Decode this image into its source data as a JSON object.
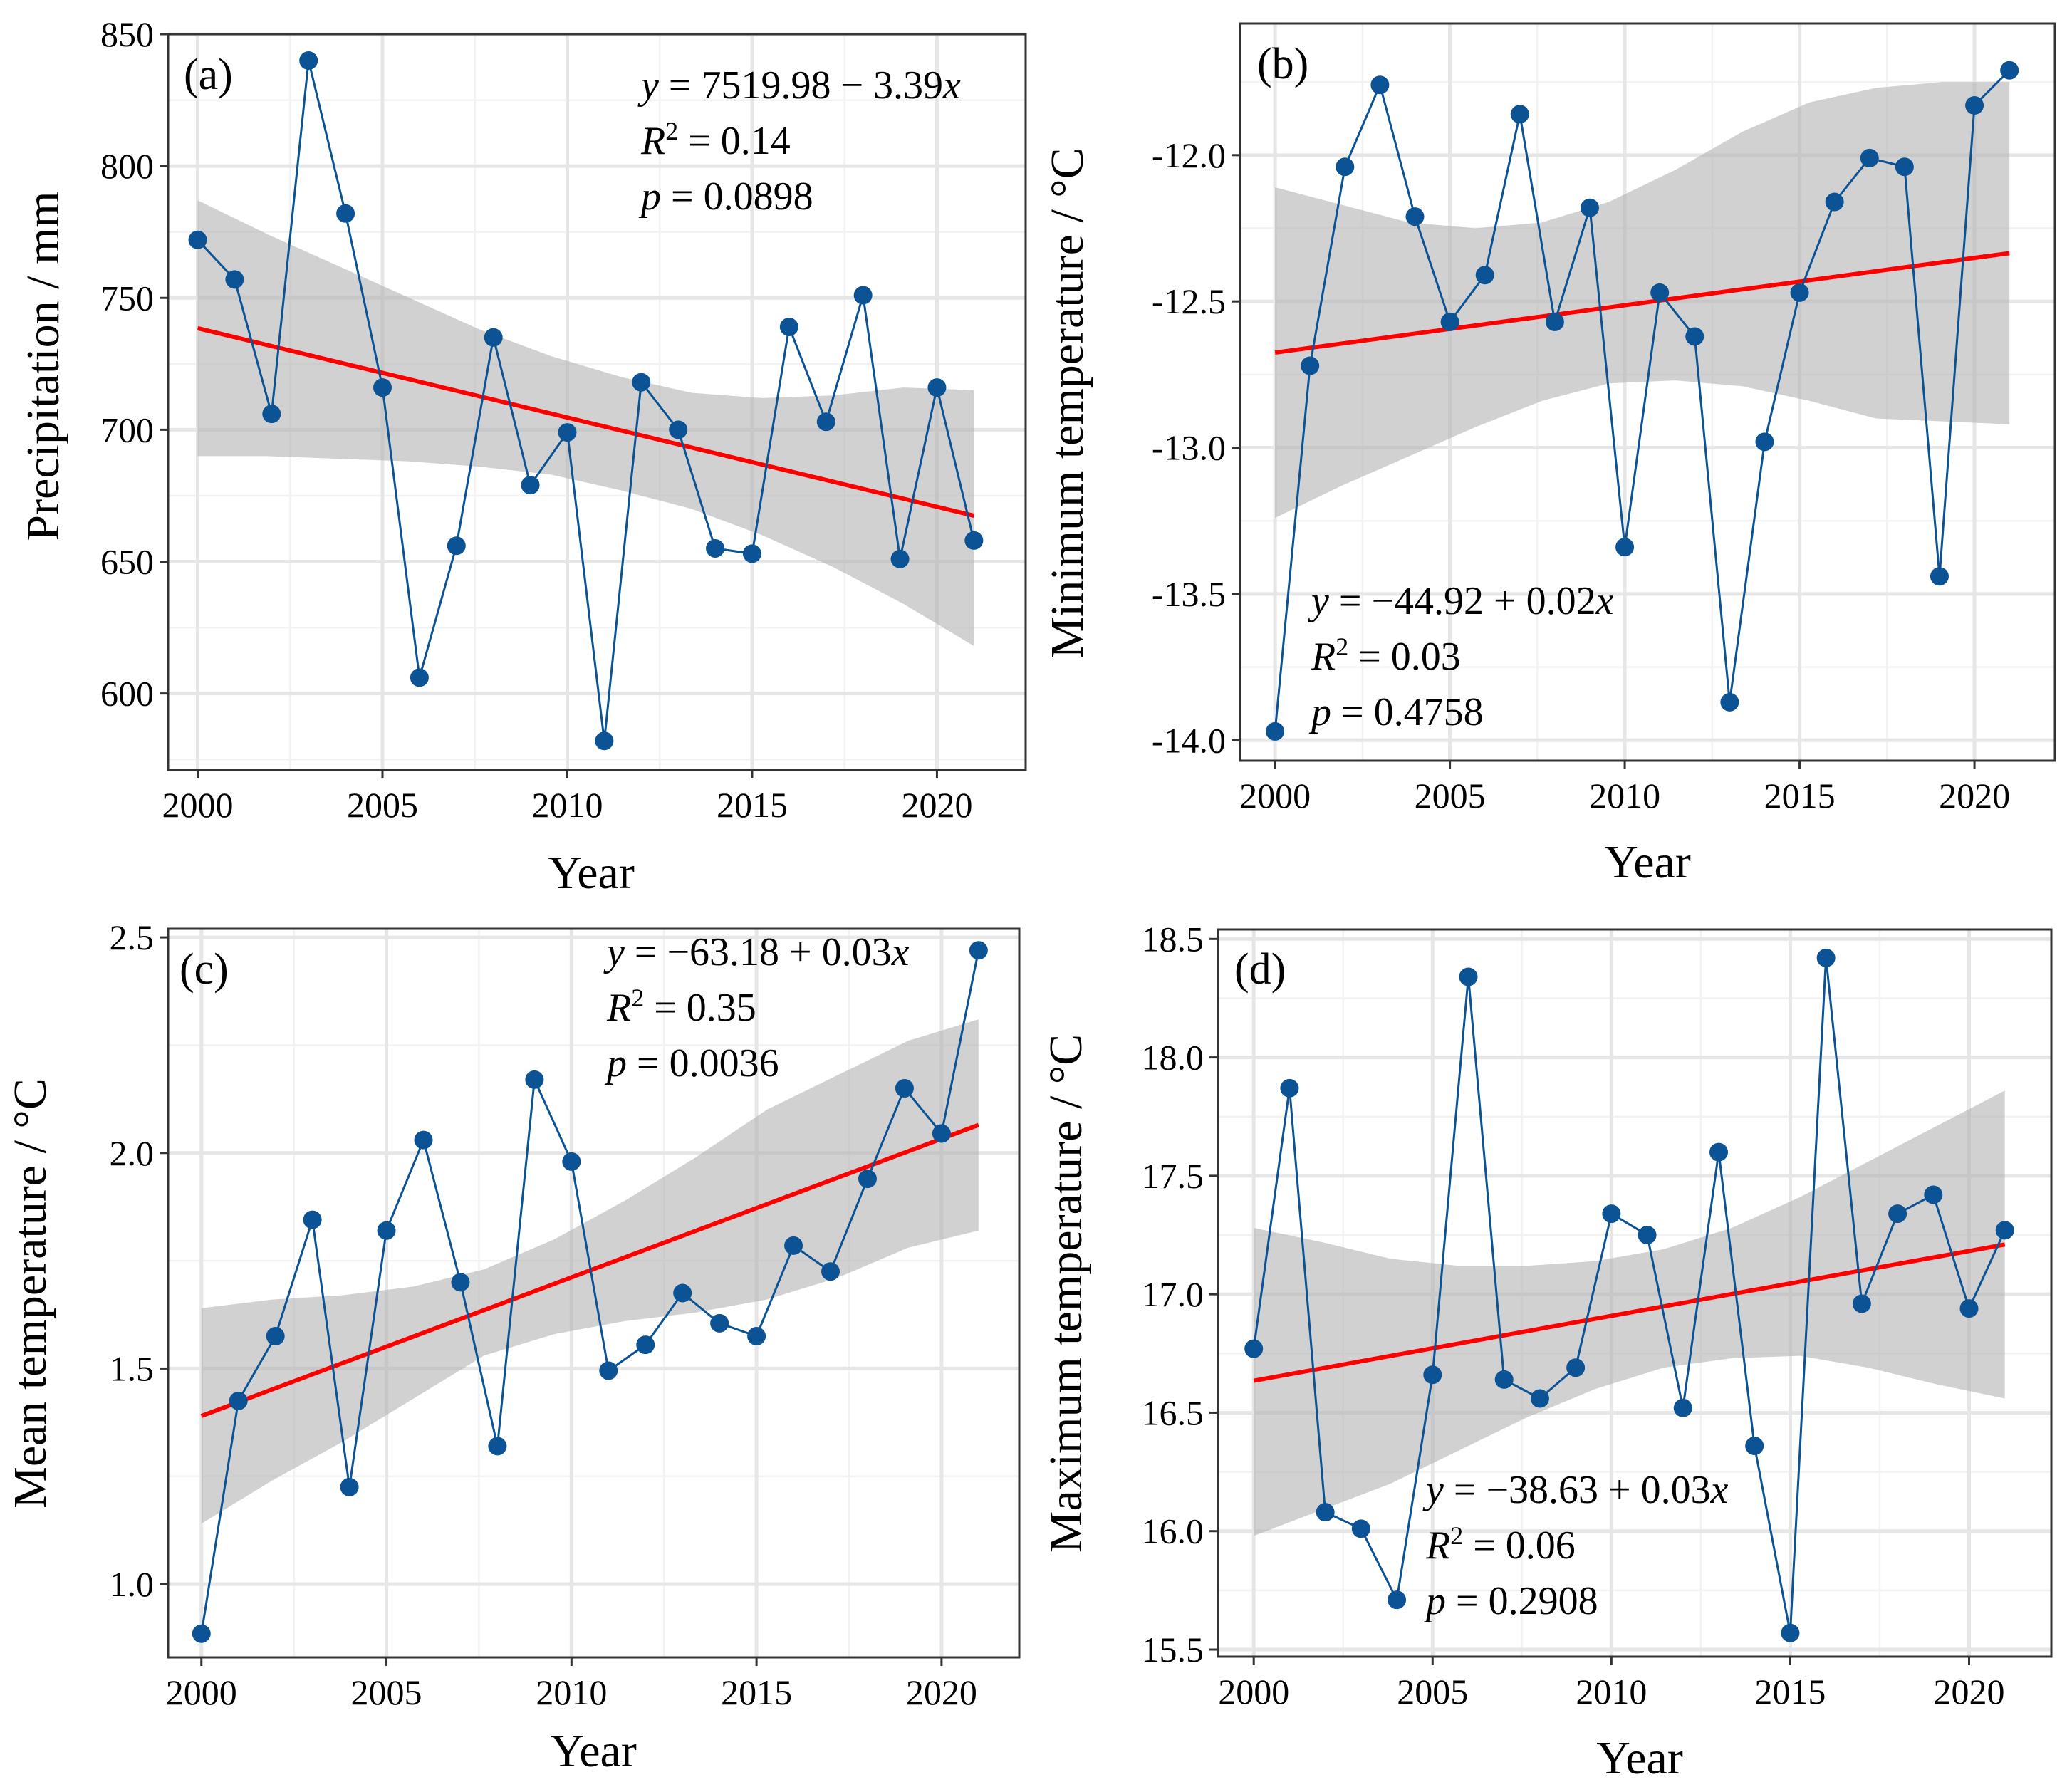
{
  "figure": {
    "colors": {
      "points": "#0b5394",
      "line": "#0b5394",
      "fit": "#ff0000",
      "band": "#b3b3b3"
    }
  },
  "chart_data": [
    {
      "id": "a",
      "type": "scatter",
      "panel_label": "(a)",
      "xlabel": "Year",
      "ylabel": "Precipitation / mm",
      "x": [
        2000,
        2001,
        2002,
        2003,
        2004,
        2005,
        2006,
        2007,
        2008,
        2009,
        2010,
        2011,
        2012,
        2013,
        2014,
        2015,
        2016,
        2017,
        2018,
        2019,
        2020,
        2021
      ],
      "y": [
        772,
        757,
        706,
        840,
        782,
        716,
        606,
        656,
        735,
        679,
        699,
        582,
        718,
        700,
        655,
        653,
        739,
        703,
        751,
        651,
        716,
        658
      ],
      "xlim": [
        1999.2,
        2022.4
      ],
      "ylim": [
        571,
        850
      ],
      "xticks": [
        2000,
        2005,
        2010,
        2015,
        2020
      ],
      "yticks": [
        600,
        650,
        700,
        750,
        800,
        850
      ],
      "ytick_labels": [
        "600",
        "650",
        "700",
        "750",
        "800",
        "850"
      ],
      "fit": {
        "intercept": 7519.98,
        "slope": -3.39,
        "x0": 2000,
        "y0": 738.5,
        "y1": 667.4
      },
      "band_upper": [
        787,
        774,
        762,
        750,
        738,
        728,
        720,
        714,
        712,
        713,
        716,
        715
      ],
      "band_lower": [
        690,
        690,
        689,
        688,
        686,
        683,
        677,
        670,
        660,
        648,
        634,
        618
      ],
      "equation": {
        "line1_y": "y",
        "line1_rest": " = 7519.98 − 3.39",
        "line1_x": "x",
        "line2_r": "R",
        "line2_sup": "2",
        "line2_rest": " = 0.14",
        "line3_p": "p",
        "line3_rest": " = 0.0898"
      }
    },
    {
      "id": "b",
      "type": "scatter",
      "panel_label": "(b)",
      "xlabel": "Year",
      "ylabel": "Minimum temperature / °C",
      "x": [
        2000,
        2001,
        2002,
        2003,
        2004,
        2005,
        2006,
        2007,
        2008,
        2009,
        2010,
        2011,
        2012,
        2013,
        2014,
        2015,
        2016,
        2017,
        2018,
        2019,
        2020,
        2021
      ],
      "y": [
        -13.97,
        -12.72,
        -12.04,
        -11.76,
        -12.21,
        -12.57,
        -12.41,
        -11.86,
        -12.57,
        -12.18,
        -13.34,
        -12.47,
        -12.62,
        -13.87,
        -12.98,
        -12.47,
        -12.16,
        -12.01,
        -12.04,
        -13.44,
        -11.83,
        -11.71
      ],
      "xlim": [
        1999.0,
        2022.3
      ],
      "ylim": [
        -14.07,
        -11.55
      ],
      "xticks": [
        2000,
        2005,
        2010,
        2015,
        2020
      ],
      "yticks": [
        -14.0,
        -13.5,
        -13.0,
        -12.5,
        -12.0
      ],
      "ytick_labels": [
        "-14.0",
        "-13.5",
        "-13.0",
        "-12.5",
        "-12.0"
      ],
      "fit": {
        "intercept": -44.92,
        "slope": 0.02,
        "x0": 2000,
        "y0": -12.675,
        "y1": -12.335
      },
      "band_upper": [
        -12.11,
        -12.17,
        -12.23,
        -12.25,
        -12.23,
        -12.16,
        -12.05,
        -11.92,
        -11.82,
        -11.77,
        -11.75,
        -11.75
      ],
      "band_lower": [
        -13.24,
        -13.13,
        -13.03,
        -12.93,
        -12.84,
        -12.78,
        -12.77,
        -12.79,
        -12.84,
        -12.9,
        -12.91,
        -12.92
      ],
      "equation": {
        "line1_y": "y",
        "line1_rest": " = −44.92 + 0.02",
        "line1_x": "x",
        "line2_r": "R",
        "line2_sup": "2",
        "line2_rest": " = 0.03",
        "line3_p": "p",
        "line3_rest": " = 0.4758"
      }
    },
    {
      "id": "c",
      "type": "scatter",
      "panel_label": "(c)",
      "xlabel": "Year",
      "ylabel": "Mean temperature / °C",
      "x": [
        2000,
        2001,
        2002,
        2003,
        2004,
        2005,
        2006,
        2007,
        2008,
        2009,
        2010,
        2011,
        2012,
        2013,
        2014,
        2015,
        2016,
        2017,
        2018,
        2019,
        2020,
        2021
      ],
      "y": [
        0.885,
        1.425,
        1.575,
        1.845,
        1.225,
        1.82,
        2.03,
        1.7,
        1.32,
        2.17,
        1.98,
        1.495,
        1.555,
        1.675,
        1.605,
        1.575,
        1.785,
        1.725,
        1.94,
        2.15,
        2.045,
        2.47
      ],
      "xlim": [
        1999.1,
        2022.1
      ],
      "ylim": [
        0.83,
        2.52
      ],
      "xticks": [
        2000,
        2005,
        2010,
        2015,
        2020
      ],
      "yticks": [
        1.0,
        1.5,
        2.0,
        2.5
      ],
      "ytick_labels": [
        "1.0",
        "1.5",
        "2.0",
        "2.5"
      ],
      "fit": {
        "intercept": -63.18,
        "slope": 0.03,
        "x0": 2000,
        "y0": 1.39,
        "y1": 2.065
      },
      "band_upper": [
        1.64,
        1.66,
        1.67,
        1.69,
        1.73,
        1.8,
        1.89,
        1.99,
        2.1,
        2.18,
        2.26,
        2.31
      ],
      "band_lower": [
        1.14,
        1.24,
        1.33,
        1.43,
        1.53,
        1.58,
        1.61,
        1.63,
        1.66,
        1.71,
        1.78,
        1.82
      ],
      "equation": {
        "line1_y": "y",
        "line1_rest": " = −63.18 + 0.03",
        "line1_x": "x",
        "line2_r": "R",
        "line2_sup": "2",
        "line2_rest": " = 0.35",
        "line3_p": "p",
        "line3_rest": " = 0.0036"
      }
    },
    {
      "id": "d",
      "type": "scatter",
      "panel_label": "(d)",
      "xlabel": "Year",
      "ylabel": "Maximum temperature / °C",
      "x": [
        2000,
        2001,
        2002,
        2003,
        2004,
        2005,
        2006,
        2007,
        2008,
        2009,
        2010,
        2011,
        2012,
        2013,
        2014,
        2015,
        2016,
        2017,
        2018,
        2019,
        2020,
        2021
      ],
      "y": [
        16.77,
        17.87,
        16.08,
        16.01,
        15.71,
        16.66,
        18.34,
        16.64,
        16.56,
        16.69,
        17.34,
        17.25,
        16.52,
        17.6,
        16.36,
        15.57,
        18.42,
        16.96,
        17.34,
        17.42,
        16.94,
        17.27
      ],
      "xlim": [
        1999.0,
        2022.3
      ],
      "ylim": [
        15.47,
        18.54
      ],
      "xticks": [
        2000,
        2005,
        2010,
        2015,
        2020
      ],
      "yticks": [
        15.5,
        16.0,
        16.5,
        17.0,
        17.5,
        18.0,
        18.5
      ],
      "ytick_labels": [
        "15.5",
        "16.0",
        "16.5",
        "17.0",
        "17.5",
        "18.0",
        "18.5"
      ],
      "fit": {
        "intercept": -38.63,
        "slope": 0.03,
        "x0": 2000,
        "y0": 16.635,
        "y1": 17.21
      },
      "band_upper": [
        17.28,
        17.22,
        17.15,
        17.12,
        17.12,
        17.14,
        17.19,
        17.28,
        17.41,
        17.56,
        17.71,
        17.86
      ],
      "band_lower": [
        15.98,
        16.09,
        16.2,
        16.34,
        16.48,
        16.6,
        16.69,
        16.73,
        16.74,
        16.69,
        16.62,
        16.56
      ],
      "equation": {
        "line1_y": "y",
        "line1_rest": " = −38.63 + 0.03",
        "line1_x": "x",
        "line2_r": "R",
        "line2_sup": "2",
        "line2_rest": " = 0.06",
        "line3_p": "p",
        "line3_rest": " = 0.2908"
      }
    }
  ]
}
